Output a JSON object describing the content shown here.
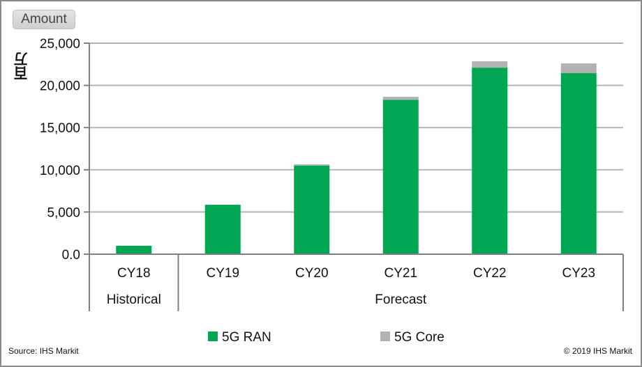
{
  "header": {
    "amount_button": "Amount"
  },
  "footer": {
    "source": "Source: IHS Markit",
    "copyright": "© 2019 IHS Markit"
  },
  "colors": {
    "ran": "#00a651",
    "core": "#b2b2b2",
    "grid": "#b3b3b3",
    "axis": "#808080"
  },
  "chart_data": {
    "type": "bar",
    "stacked": true,
    "title": "",
    "xlabel": "",
    "ylabel": "百万",
    "ylim": [
      0,
      25000
    ],
    "yticks": [
      "0.0",
      "5,000",
      "10,000",
      "15,000",
      "20,000",
      "25,000"
    ],
    "ytick_values": [
      0,
      5000,
      10000,
      15000,
      20000,
      25000
    ],
    "grid": true,
    "categories": [
      "CY18",
      "CY19",
      "CY20",
      "CY21",
      "CY22",
      "CY23"
    ],
    "groups": [
      {
        "label": "Historical",
        "categories": [
          "CY18"
        ]
      },
      {
        "label": "Forecast",
        "categories": [
          "CY19",
          "CY20",
          "CY21",
          "CY22",
          "CY23"
        ]
      }
    ],
    "series": [
      {
        "name": "5G RAN",
        "color": "#00a651",
        "values": [
          1000,
          5850,
          10500,
          18300,
          22100,
          21450
        ]
      },
      {
        "name": "5G Core",
        "color": "#b2b2b2",
        "values": [
          0,
          0,
          150,
          350,
          750,
          1150
        ]
      }
    ],
    "legend": {
      "position": "bottom",
      "entries": [
        "5G RAN",
        "5G Core"
      ]
    }
  }
}
